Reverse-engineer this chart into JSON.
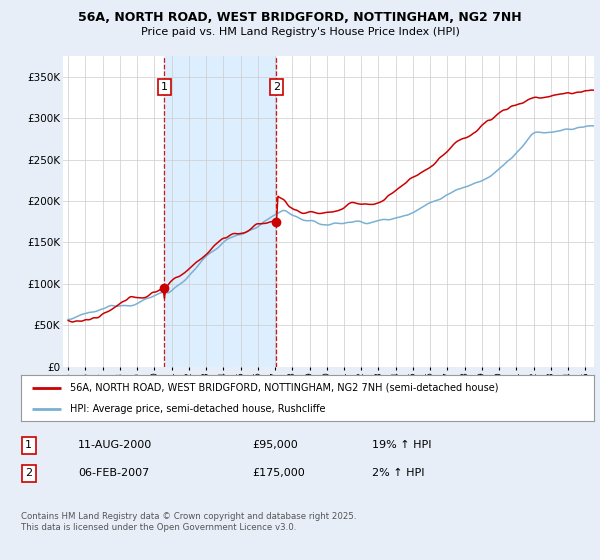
{
  "title1": "56A, NORTH ROAD, WEST BRIDGFORD, NOTTINGHAM, NG2 7NH",
  "title2": "Price paid vs. HM Land Registry's House Price Index (HPI)",
  "ylabel_ticks": [
    "£0",
    "£50K",
    "£100K",
    "£150K",
    "£200K",
    "£250K",
    "£300K",
    "£350K"
  ],
  "ytick_values": [
    0,
    50000,
    100000,
    150000,
    200000,
    250000,
    300000,
    350000
  ],
  "ylim": [
    0,
    375000
  ],
  "xlim_start": 1994.7,
  "xlim_end": 2025.5,
  "xtick_years": [
    1995,
    1996,
    1997,
    1998,
    1999,
    2000,
    2001,
    2002,
    2003,
    2004,
    2005,
    2006,
    2007,
    2008,
    2009,
    2010,
    2011,
    2012,
    2013,
    2014,
    2015,
    2016,
    2017,
    2018,
    2019,
    2020,
    2021,
    2022,
    2023,
    2024,
    2025
  ],
  "legend_line1": "56A, NORTH ROAD, WEST BRIDGFORD, NOTTINGHAM, NG2 7NH (semi-detached house)",
  "legend_line2": "HPI: Average price, semi-detached house, Rushcliffe",
  "line1_color": "#cc0000",
  "line2_color": "#7ab0d4",
  "purchase1_x": 2000.58,
  "purchase1_y": 95000,
  "purchase1_label": "1",
  "purchase2_x": 2007.08,
  "purchase2_y": 175000,
  "purchase2_label": "2",
  "shade_color": "#ddeeff",
  "annotation1_date": "11-AUG-2000",
  "annotation1_price": "£95,000",
  "annotation1_hpi": "19% ↑ HPI",
  "annotation2_date": "06-FEB-2007",
  "annotation2_price": "£175,000",
  "annotation2_hpi": "2% ↑ HPI",
  "footer": "Contains HM Land Registry data © Crown copyright and database right 2025.\nThis data is licensed under the Open Government Licence v3.0.",
  "background_color": "#e8eef8",
  "plot_bg_color": "#ffffff"
}
